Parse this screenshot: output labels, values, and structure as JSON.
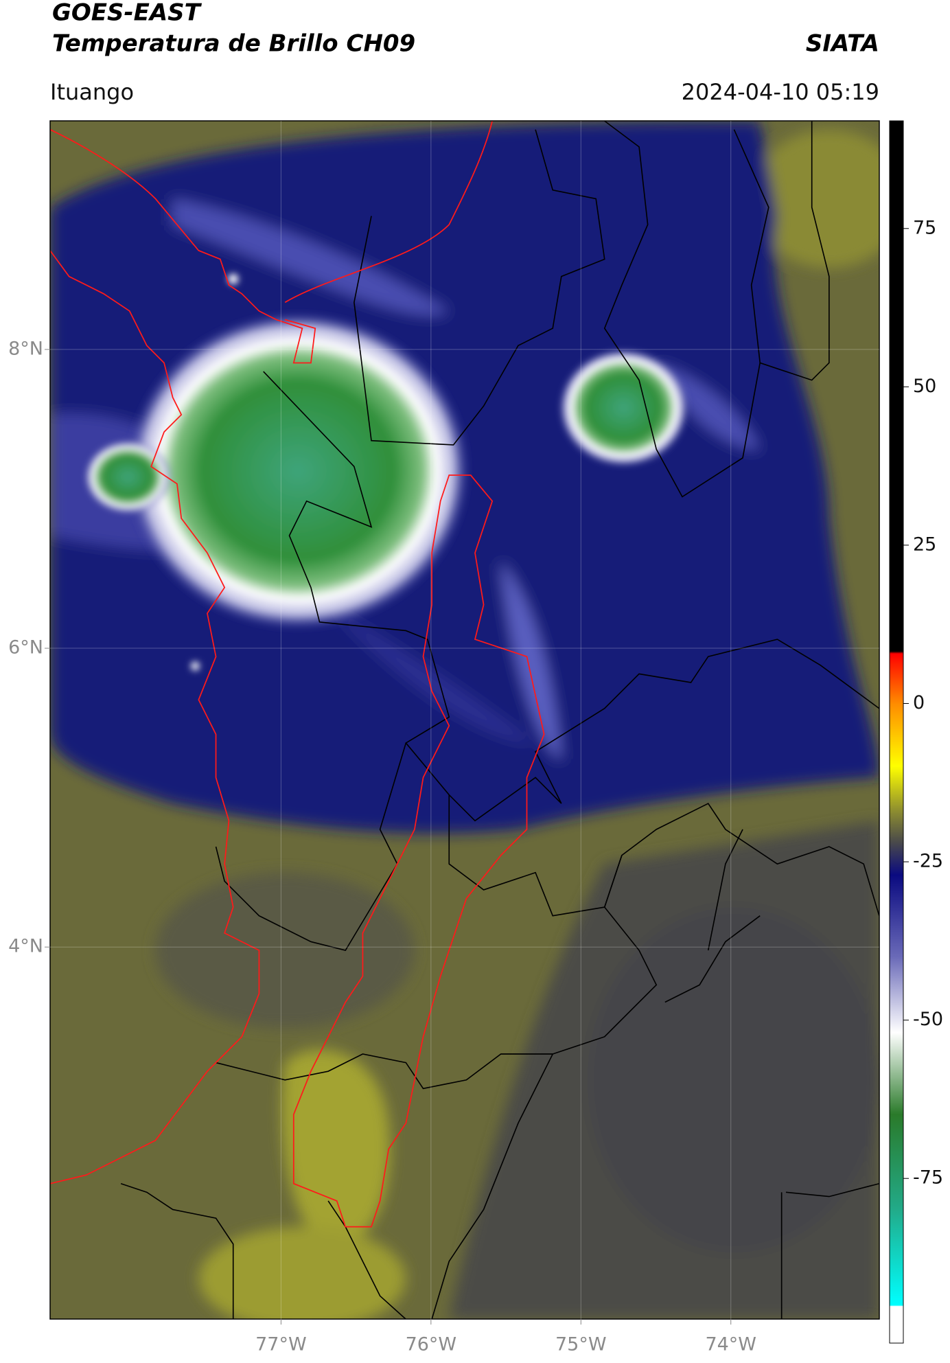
{
  "header": {
    "title": "GOES-EAST",
    "subtitle": "Temperatura de Brillo CH09",
    "source": "SIATA",
    "location": "Ituango",
    "datetime": "2024-04-10 05:19"
  },
  "map": {
    "xlim": [
      -78.54,
      -73.01
    ],
    "ylim": [
      1.51,
      9.53
    ],
    "grid": true,
    "xticks": [
      {
        "value": -77,
        "label": "77°W"
      },
      {
        "value": -76,
        "label": "76°W"
      },
      {
        "value": -75,
        "label": "75°W"
      },
      {
        "value": -74,
        "label": "74°W"
      }
    ],
    "yticks": [
      {
        "value": 8,
        "label": "8°N"
      },
      {
        "value": 6,
        "label": "6°N"
      },
      {
        "value": 4,
        "label": "4°N"
      }
    ]
  },
  "colorbar": {
    "lim": [
      -101,
      92
    ],
    "ticks": [
      75,
      50,
      25,
      0,
      -25,
      -50,
      -75
    ]
  }
}
